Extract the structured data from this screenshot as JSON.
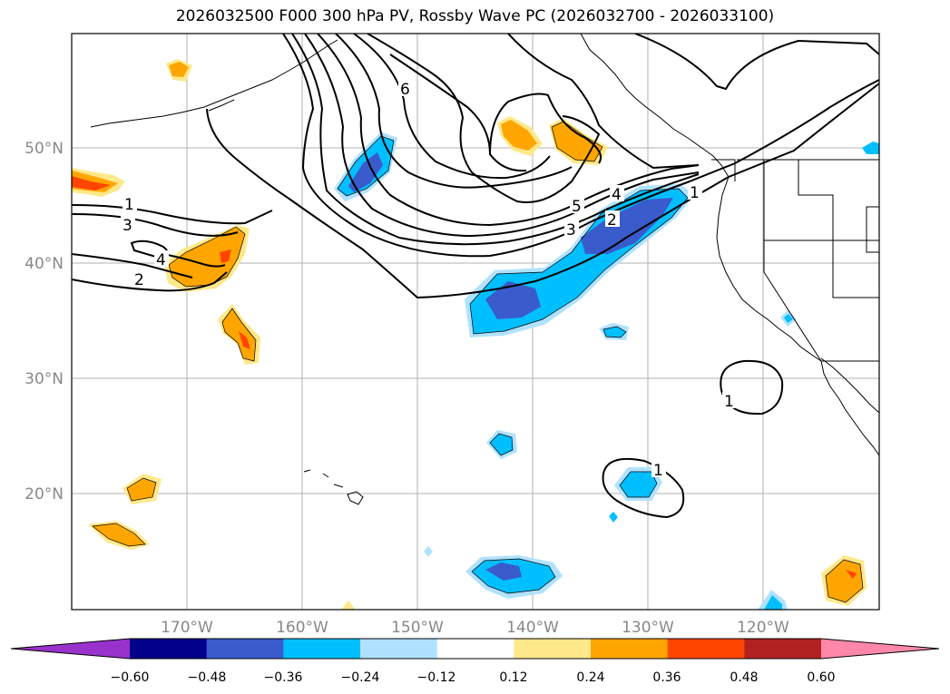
{
  "title": "2026032500 F000 300 hPa PV, Rossby Wave PC (2026032700 - 2026033100)",
  "axes": {
    "lon_ticks": [
      "170°W",
      "160°W",
      "150°W",
      "140°W",
      "130°W",
      "120°W"
    ],
    "lat_ticks": [
      "50°N",
      "40°N",
      "30°N",
      "20°N"
    ],
    "tick_color": "#888888"
  },
  "colorbar": {
    "levels": [
      -0.72,
      -0.6,
      -0.48,
      -0.36,
      -0.24,
      -0.12,
      0.12,
      0.24,
      0.36,
      0.48,
      0.6,
      0.72
    ],
    "tick_labels": [
      "−0.60",
      "−0.48",
      "−0.36",
      "−0.24",
      "−0.12",
      "0.12",
      "0.24",
      "0.36",
      "0.48",
      "0.60"
    ],
    "colors": [
      "#9932cc",
      "#00008b",
      "#3a5bcc",
      "#00bfff",
      "#b0e2ff",
      "#ffffff",
      "#ffe88a",
      "#ffa500",
      "#ff4500",
      "#b22222",
      "#ff88aa"
    ]
  },
  "contour_labels": [
    {
      "text": "1"
    },
    {
      "text": "3"
    },
    {
      "text": "4"
    },
    {
      "text": "2"
    },
    {
      "text": "6"
    },
    {
      "text": "5"
    },
    {
      "text": "4"
    },
    {
      "text": "3"
    },
    {
      "text": "2"
    },
    {
      "text": "1"
    },
    {
      "text": "1"
    },
    {
      "text": "1"
    }
  ]
}
